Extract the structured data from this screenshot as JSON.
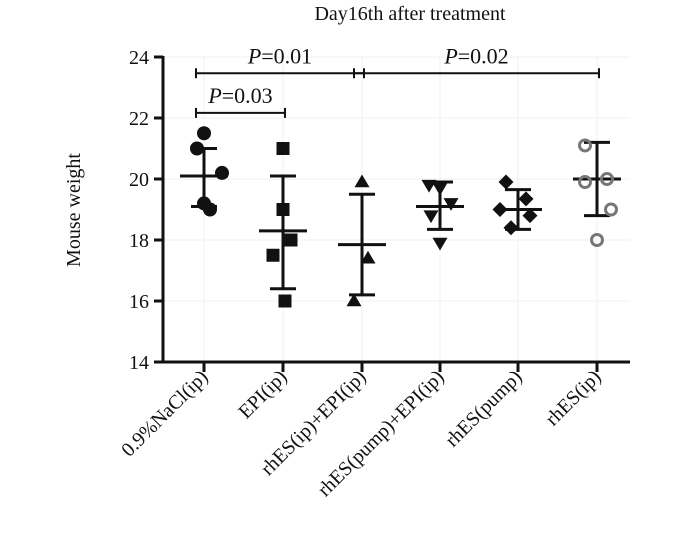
{
  "chart_data": {
    "type": "scatter",
    "title": "Day16th after treatment",
    "ylabel": "Mouse weight",
    "xlabel": "",
    "ylim": [
      14,
      24
    ],
    "yticks": [
      14,
      16,
      18,
      20,
      22,
      24
    ],
    "categories": [
      "0.9%NaCl(ip)",
      "EPI(ip)",
      "rhES(ip)+EPI(ip)",
      "rhES(pump)+EPI(ip)",
      "rhES(pump)",
      "rhES(ip)"
    ],
    "groups": [
      {
        "name": "0.9%NaCl(ip)",
        "marker": "circle-filled",
        "points": [
          21.5,
          21.0,
          20.2,
          19.2,
          19.0
        ],
        "mean": 20.1,
        "sd_upper": 21.0,
        "sd_lower": 19.1
      },
      {
        "name": "EPI(ip)",
        "marker": "square-filled",
        "points": [
          21.0,
          19.0,
          18.0,
          17.5,
          16.0
        ],
        "mean": 18.3,
        "sd_upper": 20.1,
        "sd_lower": 16.4
      },
      {
        "name": "rhES(ip)+EPI(ip)",
        "marker": "triangle-up-filled",
        "points": [
          19.9,
          17.4,
          16.0
        ],
        "mean": 17.85,
        "sd_upper": 19.5,
        "sd_lower": 16.2
      },
      {
        "name": "rhES(pump)+EPI(ip)",
        "marker": "triangle-down-filled",
        "points": [
          19.8,
          19.7,
          19.2,
          18.8,
          17.9
        ],
        "mean": 19.1,
        "sd_upper": 19.9,
        "sd_lower": 18.35
      },
      {
        "name": "rhES(pump)",
        "marker": "diamond-filled",
        "points": [
          19.9,
          19.35,
          19.0,
          18.8,
          18.4
        ],
        "mean": 19.0,
        "sd_upper": 19.65,
        "sd_lower": 18.35
      },
      {
        "name": "rhES(ip)",
        "marker": "circle-open",
        "points": [
          21.1,
          20.0,
          19.9,
          19.0,
          18.0
        ],
        "mean": 20.0,
        "sd_upper": 21.2,
        "sd_lower": 18.8
      }
    ],
    "annotations": [
      {
        "p_label": "P",
        "p_value": "=0.01",
        "from_group": 0,
        "to_group": 2,
        "y": 23.5
      },
      {
        "p_label": "P",
        "p_value": "=0.02",
        "from_group": 2,
        "to_group": 5,
        "y": 23.5
      },
      {
        "p_label": "P",
        "p_value": "=0.03",
        "from_group": 0,
        "to_group": 1,
        "y": 22.2
      }
    ]
  }
}
